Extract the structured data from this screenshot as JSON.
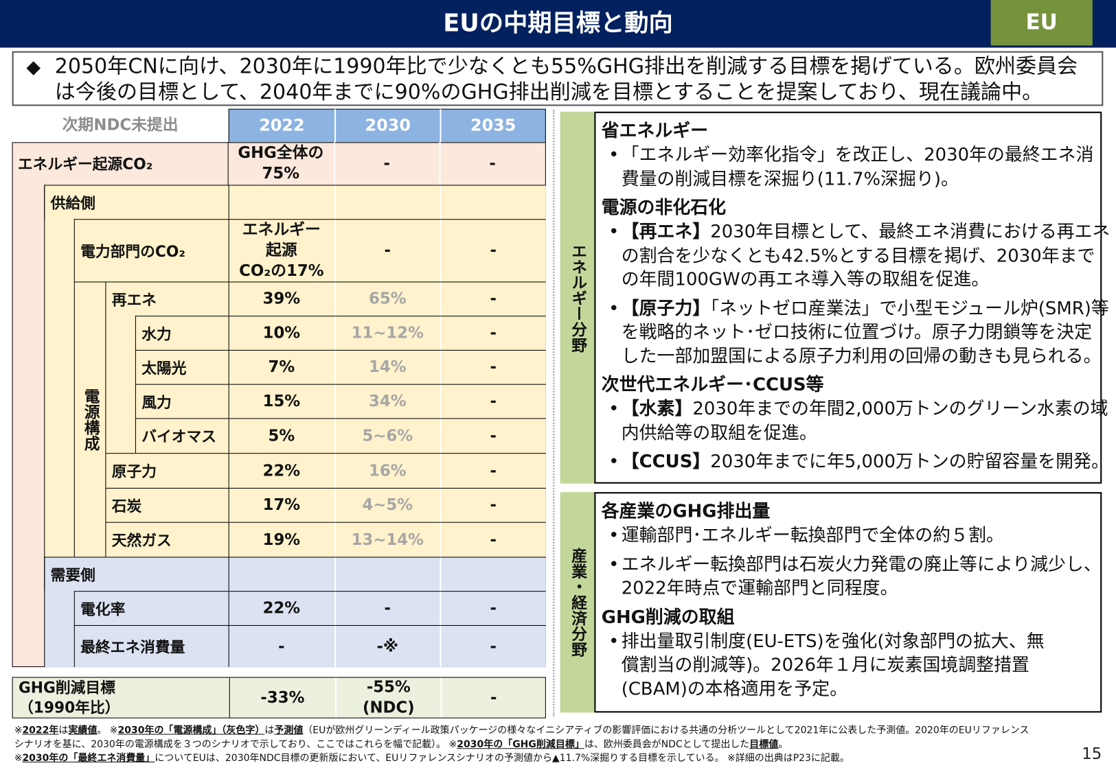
{
  "header": {
    "title": "EUの中期目標と動向",
    "region_tag": "EU"
  },
  "colors": {
    "header_bg": "#03205f",
    "region_bg": "#76923c",
    "col_header_bg": "#8db3e2",
    "energy_bg": "#fce8dc",
    "supply_bg": "#fff2cc",
    "demand_bg": "#dbe2f2",
    "ghg_bg": "#ebf1de",
    "panel_strip": "#c4d79b"
  },
  "summary": {
    "bullet_icon": "diamond-icon",
    "lines": [
      "2050年CNに向け、2030年に1990年比で少なくとも55%GHG排出を削減する目標を掲げている。欧州委員会",
      "は今後の目標として、2040年までに90%のGHG排出削減を目標とすることを提案しており、現在議論中。"
    ]
  },
  "table": {
    "corner_label": "次期NDC未提出",
    "columns": [
      "2022",
      "2030",
      "2035"
    ],
    "group_label_power_mix": "電源構成",
    "rows": [
      {
        "label": "エネルギー起源CO₂",
        "values": [
          "GHG全体の\n75%",
          "-",
          "-"
        ],
        "grey_2030": false
      },
      {
        "label": "供給側",
        "values": [
          "",
          "",
          ""
        ],
        "grey_2030": false
      },
      {
        "label": "電力部門のCO₂",
        "values": [
          "エネルギー\n起源\nCO₂の17%",
          "-",
          "-"
        ],
        "grey_2030": false
      },
      {
        "label": "再エネ",
        "values": [
          "39%",
          "65%",
          "-"
        ],
        "grey_2030": true
      },
      {
        "label": "水力",
        "values": [
          "10%",
          "11~12%",
          "-"
        ],
        "grey_2030": true
      },
      {
        "label": "太陽光",
        "values": [
          "7%",
          "14%",
          "-"
        ],
        "grey_2030": true
      },
      {
        "label": "風力",
        "values": [
          "15%",
          "34%",
          "-"
        ],
        "grey_2030": true
      },
      {
        "label": "バイオマス",
        "values": [
          "5%",
          "5~6%",
          "-"
        ],
        "grey_2030": true
      },
      {
        "label": "原子力",
        "values": [
          "22%",
          "16%",
          "-"
        ],
        "grey_2030": true
      },
      {
        "label": "石炭",
        "values": [
          "17%",
          "4~5%",
          "-"
        ],
        "grey_2030": true
      },
      {
        "label": "天然ガス",
        "values": [
          "19%",
          "13~14%",
          "-"
        ],
        "grey_2030": true
      },
      {
        "label": "需要側",
        "values": [
          "",
          "",
          ""
        ],
        "grey_2030": false
      },
      {
        "label": "電化率",
        "values": [
          "22%",
          "-",
          "-"
        ],
        "grey_2030": false
      },
      {
        "label": "最終エネ消費量",
        "values": [
          "-",
          "-※",
          "-"
        ],
        "grey_2030": false
      }
    ],
    "ghg_row": {
      "label": "GHG削減目標\n（1990年比）",
      "values": [
        "-33%",
        "-55%\n(NDC)",
        "-"
      ]
    }
  },
  "panels": [
    {
      "side_label": "エネルギー分野",
      "sections": [
        {
          "heading": "省エネルギー",
          "bullets": [
            {
              "prefix": "",
              "lines": [
                "「エネルギー効率化指令」を改正し、2030年の最終エネ消",
                "費量の削減目標を深掘り(11.7%深掘り)。"
              ]
            }
          ]
        },
        {
          "heading": "電源の非化石化",
          "bullets": [
            {
              "prefix": "【再エネ】",
              "lines": [
                "2030年目標として、最終エネ消費における再エネ",
                "の割合を少なくとも42.5%とする目標を掲げ、2030年まで",
                "の年間100GWの再エネ導入等の取組を促進。"
              ]
            },
            {
              "prefix": "【原子力】",
              "lines": [
                "「ネットゼロ産業法」で小型モジュール炉(SMR)等",
                "を戦略的ネット･ゼロ技術に位置づけ。原子力閉鎖等を決定",
                "した一部加盟国による原子力利用の回帰の動きも見られる。"
              ]
            }
          ]
        },
        {
          "heading": "次世代エネルギー･CCUS等",
          "bullets": [
            {
              "prefix": "【水素】",
              "lines": [
                "2030年までの年間2,000万トンのグリーン水素の域",
                "内供給等の取組を促進。"
              ]
            },
            {
              "prefix": "【CCUS】",
              "lines": [
                "2030年までに年5,000万トンの貯留容量を開発。"
              ]
            }
          ]
        }
      ]
    },
    {
      "side_label": "産業・経済分野",
      "sections": [
        {
          "heading": "各産業のGHG排出量",
          "bullets": [
            {
              "prefix": "",
              "lines": [
                "運輸部門･エネルギー転換部門で全体の約５割。"
              ]
            },
            {
              "prefix": "",
              "lines": [
                "エネルギー転換部門は石炭火力発電の廃止等により減少し、",
                "2022年時点で運輸部門と同程度。"
              ]
            }
          ]
        },
        {
          "heading": "GHG削減の取組",
          "bullets": [
            {
              "prefix": "",
              "lines": [
                "排出量取引制度(EU-ETS)を強化(対象部門の拡大、無",
                "償割当の削減等)。2026年１月に炭素国境調整措置",
                "(CBAM)の本格適用を予定。"
              ]
            }
          ]
        }
      ]
    }
  ],
  "footnotes": [
    [
      {
        "t": "※"
      },
      {
        "t": "2022年",
        "b": true
      },
      {
        "t": "は"
      },
      {
        "t": "実績値",
        "b": true
      },
      {
        "t": "。 ※"
      },
      {
        "t": "2030年の「電源構成」（灰色字）",
        "b": true
      },
      {
        "t": "は"
      },
      {
        "t": "予測値",
        "b": true
      },
      {
        "t": "（EUが欧州グリーンディール政策パッケージの様々なイニシアティブの影響評価における共通の分析ツールとして2021年に公表した予測値。2020年のEUリファレンス"
      }
    ],
    [
      {
        "t": "シナリオを基に、2030年の電源構成を３つのシナリオで示しており、ここではこれらを幅で記載）。 ※"
      },
      {
        "t": "2030年の「GHG削減目標」",
        "b": true
      },
      {
        "t": "は、欧州委員会がNDCとして提出した"
      },
      {
        "t": "目標値",
        "b": true
      },
      {
        "t": "。"
      }
    ],
    [
      {
        "t": "※"
      },
      {
        "t": "2030年の「最終エネ消費量」",
        "b": true
      },
      {
        "t": "についてEUは、2030年NDC目標の更新版において、EUリファレンスシナリオの予測値から▲11.7%深掘りする目標を示している。 ※詳細の出典はP23に記載。"
      }
    ]
  ],
  "page_number": "15"
}
